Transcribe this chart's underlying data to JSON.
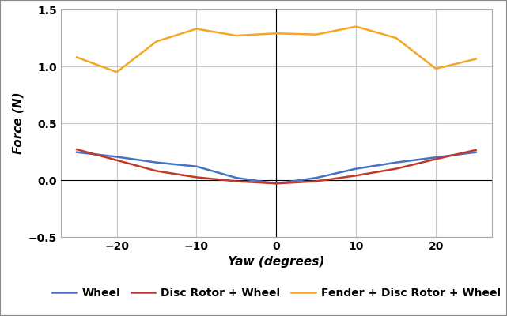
{
  "xlabel": "Yaw (degrees)",
  "ylabel": "Force (N)",
  "xlim": [
    -27,
    27
  ],
  "ylim": [
    -0.5,
    1.5
  ],
  "yticks": [
    -0.5,
    0,
    0.5,
    1.0,
    1.5
  ],
  "xticks": [
    -20,
    -10,
    0,
    10,
    20
  ],
  "background_color": "#ffffff",
  "grid_color": "#c8c8c8",
  "yaw": [
    -25,
    -20,
    -15,
    -10,
    -5,
    0,
    5,
    10,
    15,
    20,
    25
  ],
  "wheel": [
    0.245,
    0.205,
    0.155,
    0.12,
    0.02,
    -0.03,
    0.02,
    0.1,
    0.155,
    0.2,
    0.245
  ],
  "disc_rotor_wheel": [
    0.27,
    0.175,
    0.08,
    0.025,
    -0.01,
    -0.03,
    -0.01,
    0.04,
    0.1,
    0.185,
    0.265
  ],
  "fender_disc_rotor_wheel": [
    1.08,
    0.95,
    1.22,
    1.33,
    1.27,
    1.29,
    1.28,
    1.35,
    1.25,
    0.98,
    1.065
  ],
  "wheel_color": "#4472c4",
  "disc_rotor_wheel_color": "#c0392b",
  "fender_disc_rotor_wheel_color": "#f5a623",
  "line_width": 1.8,
  "label_fontsize": 11,
  "tick_fontsize": 10,
  "legend_fontsize": 10
}
